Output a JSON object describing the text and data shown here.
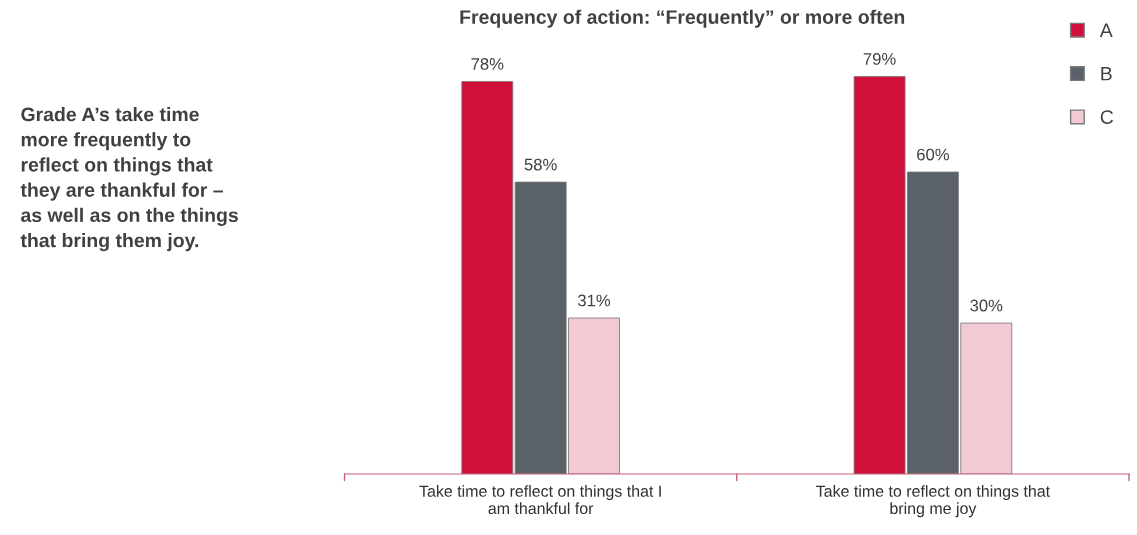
{
  "chart_data": {
    "type": "bar",
    "title": "Frequency of action: “Frequently” or more often",
    "categories": [
      "Take time to reflect on things that I\nam thankful for",
      "Take time to reflect on things that\nbring me joy"
    ],
    "series": [
      {
        "name": "A",
        "color": "#d0103a",
        "values": [
          78,
          79
        ],
        "value_labels": [
          "78%",
          "79%"
        ]
      },
      {
        "name": "B",
        "color": "#5b6168",
        "values": [
          58,
          60
        ],
        "value_labels": [
          "58%",
          "60%"
        ]
      },
      {
        "name": "C",
        "color": "#f3c9d3",
        "values": [
          31,
          30
        ],
        "value_labels": [
          "31%",
          "30%"
        ]
      }
    ],
    "annotations": [
      "Grade A’s take time\nmore frequently to\nreflect on things that\nthey are thankful for –\nas well as on the things\nthat bring them joy."
    ],
    "legend": "top right",
    "grid": false
  }
}
